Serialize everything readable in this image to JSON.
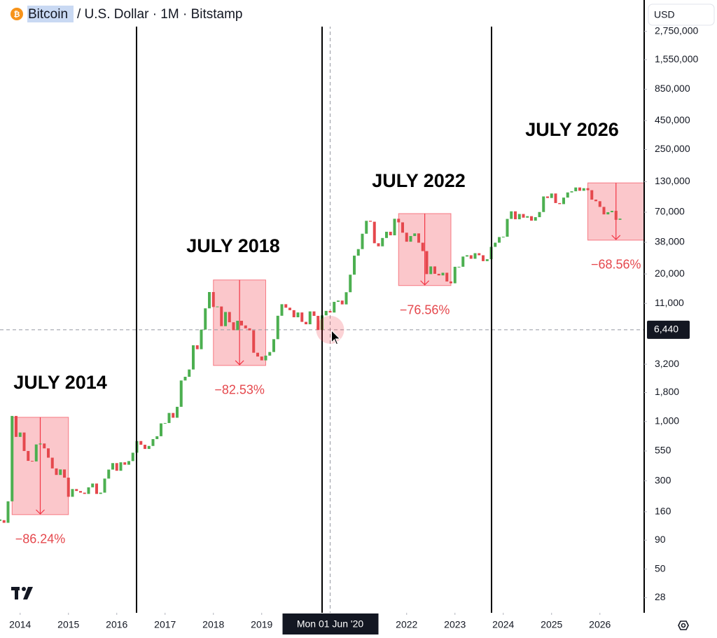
{
  "chart_data": {
    "type": "candlestick",
    "title": "Bitcoin",
    "subtitle": "/ U.S. Dollar · 1M · Bitstamp",
    "currency": "USD",
    "log_scale": true,
    "colors": {
      "up": "#4caf50",
      "down": "#e5484d",
      "box": "#f23645"
    },
    "xlim": [
      "2013-08",
      "2026-12"
    ],
    "xticks": [
      "2014",
      "2015",
      "2016",
      "2017",
      "2018",
      "2019",
      "2022",
      "2023",
      "2024",
      "2025",
      "2026"
    ],
    "ylim": [
      20.6,
      5200000
    ],
    "yticks": [
      28,
      50,
      90,
      160,
      300,
      550,
      {
        "value": 1000,
        "label": "1,000"
      },
      {
        "value": 1800,
        "label": "1,800"
      },
      {
        "value": 3200,
        "label": "3,200"
      },
      {
        "value": 11000,
        "label": "11,000"
      },
      {
        "value": 20000,
        "label": "20,000"
      },
      {
        "value": 38000,
        "label": "38,000"
      },
      {
        "value": 70000,
        "label": "70,000"
      },
      {
        "value": 130000,
        "label": "130,000"
      },
      {
        "value": 250000,
        "label": "250,000"
      },
      {
        "value": 450000,
        "label": "450,000"
      },
      {
        "value": 850000,
        "label": "850,000"
      },
      {
        "value": 1550000,
        "label": "1,550,000"
      },
      {
        "value": 2750000,
        "label": "2,750,000"
      }
    ],
    "x": [
      "2013-08",
      "2013-09",
      "2013-10",
      "2013-11",
      "2013-12",
      "2014-01",
      "2014-02",
      "2014-03",
      "2014-04",
      "2014-05",
      "2014-06",
      "2014-07",
      "2014-08",
      "2014-09",
      "2014-10",
      "2014-11",
      "2014-12",
      "2015-01",
      "2015-02",
      "2015-03",
      "2015-04",
      "2015-05",
      "2015-06",
      "2015-07",
      "2015-08",
      "2015-09",
      "2015-10",
      "2015-11",
      "2015-12",
      "2016-01",
      "2016-02",
      "2016-03",
      "2016-04",
      "2016-05",
      "2016-06",
      "2016-07",
      "2016-08",
      "2016-09",
      "2016-10",
      "2016-11",
      "2016-12",
      "2017-01",
      "2017-02",
      "2017-03",
      "2017-04",
      "2017-05",
      "2017-06",
      "2017-07",
      "2017-08",
      "2017-09",
      "2017-10",
      "2017-11",
      "2017-12",
      "2018-01",
      "2018-02",
      "2018-03",
      "2018-04",
      "2018-05",
      "2018-06",
      "2018-07",
      "2018-08",
      "2018-09",
      "2018-10",
      "2018-11",
      "2018-12",
      "2019-01",
      "2019-02",
      "2019-03",
      "2019-04",
      "2019-05",
      "2019-06",
      "2019-07",
      "2019-08",
      "2019-09",
      "2019-10",
      "2019-11",
      "2019-12",
      "2020-01",
      "2020-02",
      "2020-03",
      "2020-04",
      "2020-05",
      "2020-06",
      "2020-07",
      "2020-08",
      "2020-09",
      "2020-10",
      "2020-11",
      "2020-12",
      "2021-01",
      "2021-02",
      "2021-03",
      "2021-04",
      "2021-05",
      "2021-06",
      "2021-07",
      "2021-08",
      "2021-09",
      "2021-10",
      "2021-11",
      "2021-12",
      "2022-01",
      "2022-02",
      "2022-03",
      "2022-04",
      "2022-05",
      "2022-06",
      "2022-07",
      "2022-08",
      "2022-09",
      "2022-10",
      "2022-11",
      "2022-12",
      "2023-01",
      "2023-02",
      "2023-03",
      "2023-04",
      "2023-05",
      "2023-06",
      "2023-07",
      "2023-08",
      "2023-09",
      "2023-10",
      "2023-11",
      "2023-12",
      "2024-01",
      "2024-02",
      "2024-03",
      "2024-04",
      "2024-05",
      "2024-06",
      "2024-07",
      "2024-08",
      "2024-09",
      "2024-10",
      "2024-11",
      "2024-12",
      "2025-01",
      "2025-02",
      "2025-03",
      "2025-04",
      "2025-05",
      "2025-06",
      "2025-07",
      "2025-08",
      "2025-09",
      "2025-10",
      "2025-11",
      "2025-12",
      "2026-01",
      "2026-02",
      "2026-03",
      "2026-04",
      "2026-05",
      "2026-06"
    ],
    "values": [
      135,
      128,
      198,
      1120,
      732,
      800,
      550,
      450,
      445,
      628,
      640,
      580,
      480,
      386,
      338,
      378,
      320,
      217,
      254,
      244,
      236,
      230,
      263,
      284,
      230,
      236,
      314,
      377,
      430,
      368,
      437,
      416,
      448,
      531,
      673,
      624,
      573,
      609,
      700,
      742,
      963,
      970,
      1190,
      1080,
      1348,
      2300,
      2480,
      2875,
      4700,
      4340,
      6460,
      9950,
      13850,
      10220,
      10330,
      6930,
      9240,
      7500,
      6390,
      7730,
      7030,
      6630,
      6370,
      4040,
      3740,
      3460,
      3810,
      4100,
      5320,
      8560,
      10820,
      10080,
      9590,
      8300,
      9150,
      7560,
      7200,
      9350,
      8540,
      6420,
      8630,
      9450,
      9140,
      11350,
      11650,
      10780,
      13800,
      19700,
      28990,
      33110,
      45240,
      58800,
      57720,
      37300,
      35040,
      41490,
      47100,
      43820,
      61300,
      57000,
      46200,
      38480,
      43180,
      45540,
      37710,
      31790,
      19930,
      23300,
      20050,
      19420,
      20490,
      17170,
      16540,
      23130,
      23140,
      28470,
      29230,
      27220,
      30470,
      29230,
      25940,
      26970,
      34650,
      37720,
      42280,
      42580,
      61130,
      71290,
      60670,
      67530,
      62680,
      64620,
      58970,
      63330,
      70290,
      96450,
      93430,
      102400,
      84350,
      82550,
      94210,
      104600,
      107100,
      115700,
      108200,
      114000,
      109500,
      90400,
      87500,
      78000,
      67000,
      70000,
      72000,
      60000,
      61500
    ],
    "annotations": [
      {
        "heading": "JULY 2014",
        "start": "2013-11",
        "end": "2015-01",
        "top": 1090,
        "bottom": 151,
        "change": {
          "value": -86.24,
          "label": "−86.24%"
        }
      },
      {
        "heading": "JULY 2018",
        "start": "2018-01",
        "end": "2019-02",
        "top": 17700,
        "bottom": 3120,
        "change": {
          "value": -82.53,
          "label": "−82.53%"
        }
      },
      {
        "heading": "JULY 2022",
        "start": "2021-11",
        "end": "2022-12",
        "top": 68100,
        "bottom": 15800,
        "change": {
          "value": -76.56,
          "label": "−76.56%"
        }
      },
      {
        "heading": "JULY 2026",
        "start": "2025-10",
        "end": "2026-12",
        "top": 127000,
        "bottom": 39700,
        "change": {
          "value": -68.56,
          "label": "−68.56%"
        }
      }
    ],
    "crosshair": {
      "date": "2020-06",
      "date_label": "Mon 01 Jun '20",
      "price": {
        "value": 6440,
        "label": "6,440"
      }
    }
  }
}
